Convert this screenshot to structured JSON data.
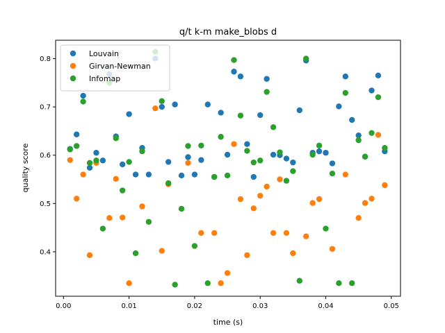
{
  "chart_data": {
    "type": "scatter",
    "title": "q/t k-m make_blobs d",
    "xlabel": "time (s)",
    "ylabel": "quality score",
    "xlim": [
      -0.0012,
      0.0514
    ],
    "ylim": [
      0.308,
      0.838
    ],
    "xticks": [
      0.0,
      0.01,
      0.02,
      0.03,
      0.04,
      0.05
    ],
    "xtick_labels": [
      "0.00",
      "0.01",
      "0.02",
      "0.03",
      "0.04",
      "0.05"
    ],
    "yticks": [
      0.4,
      0.5,
      0.6,
      0.7,
      0.8
    ],
    "ytick_labels": [
      "0.4",
      "0.5",
      "0.6",
      "0.7",
      "0.8"
    ],
    "grid": false,
    "legend_position": "top-left",
    "series": [
      {
        "name": "Louvain",
        "color": "#1f77b4",
        "points": [
          [
            0.001,
            0.613
          ],
          [
            0.002,
            0.643
          ],
          [
            0.003,
            0.723
          ],
          [
            0.004,
            0.574
          ],
          [
            0.005,
            0.605
          ],
          [
            0.006,
            0.589
          ],
          [
            0.007,
            0.768
          ],
          [
            0.008,
            0.639
          ],
          [
            0.009,
            0.581
          ],
          [
            0.01,
            0.685
          ],
          [
            0.011,
            0.56
          ],
          [
            0.012,
            0.615
          ],
          [
            0.013,
            0.56
          ],
          [
            0.014,
            0.8
          ],
          [
            0.015,
            0.7
          ],
          [
            0.016,
            0.586
          ],
          [
            0.017,
            0.705
          ],
          [
            0.018,
            0.558
          ],
          [
            0.019,
            0.596
          ],
          [
            0.02,
            0.56
          ],
          [
            0.021,
            0.59
          ],
          [
            0.022,
            0.705
          ],
          [
            0.023,
            0.555
          ],
          [
            0.024,
            0.688
          ],
          [
            0.025,
            0.601
          ],
          [
            0.026,
            0.773
          ],
          [
            0.027,
            0.763
          ],
          [
            0.028,
            0.623
          ],
          [
            0.029,
            0.555
          ],
          [
            0.03,
            0.683
          ],
          [
            0.031,
            0.758
          ],
          [
            0.032,
            0.601
          ],
          [
            0.033,
            0.6
          ],
          [
            0.034,
            0.593
          ],
          [
            0.035,
            0.585
          ],
          [
            0.036,
            0.693
          ],
          [
            0.037,
            0.796
          ],
          [
            0.038,
            0.605
          ],
          [
            0.039,
            0.608
          ],
          [
            0.04,
            0.605
          ],
          [
            0.041,
            0.583
          ],
          [
            0.042,
            0.701
          ],
          [
            0.043,
            0.763
          ],
          [
            0.044,
            0.673
          ],
          [
            0.045,
            0.641
          ],
          [
            0.046,
            0.597
          ],
          [
            0.047,
            0.734
          ],
          [
            0.048,
            0.765
          ],
          [
            0.049,
            0.608
          ]
        ]
      },
      {
        "name": "Girvan-Newman",
        "color": "#ff7f0e",
        "points": [
          [
            0.001,
            0.59
          ],
          [
            0.002,
            0.51
          ],
          [
            0.003,
            0.56
          ],
          [
            0.004,
            0.393
          ],
          [
            0.005,
            0.584
          ],
          [
            0.007,
            0.47
          ],
          [
            0.008,
            0.551
          ],
          [
            0.009,
            0.471
          ],
          [
            0.01,
            0.335
          ],
          [
            0.012,
            0.494
          ],
          [
            0.014,
            0.697
          ],
          [
            0.015,
            0.402
          ],
          [
            0.016,
            0.54
          ],
          [
            0.019,
            0.584
          ],
          [
            0.021,
            0.439
          ],
          [
            0.023,
            0.439
          ],
          [
            0.024,
            0.335
          ],
          [
            0.025,
            0.356
          ],
          [
            0.026,
            0.623
          ],
          [
            0.027,
            0.509
          ],
          [
            0.028,
            0.393
          ],
          [
            0.029,
            0.49
          ],
          [
            0.03,
            0.516
          ],
          [
            0.031,
            0.535
          ],
          [
            0.032,
            0.439
          ],
          [
            0.033,
            0.55
          ],
          [
            0.034,
            0.439
          ],
          [
            0.035,
            0.397
          ],
          [
            0.037,
            0.432
          ],
          [
            0.038,
            0.501
          ],
          [
            0.039,
            0.509
          ],
          [
            0.041,
            0.406
          ],
          [
            0.043,
            0.56
          ],
          [
            0.045,
            0.47
          ],
          [
            0.046,
            0.501
          ],
          [
            0.047,
            0.51
          ],
          [
            0.048,
            0.642
          ],
          [
            0.049,
            0.538
          ]
        ]
      },
      {
        "name": "Infomap",
        "color": "#2ca02c",
        "points": [
          [
            0.001,
            0.612
          ],
          [
            0.002,
            0.619
          ],
          [
            0.003,
            0.711
          ],
          [
            0.004,
            0.584
          ],
          [
            0.005,
            0.589
          ],
          [
            0.006,
            0.448
          ],
          [
            0.007,
            0.75
          ],
          [
            0.008,
            0.635
          ],
          [
            0.009,
            0.527
          ],
          [
            0.01,
            0.586
          ],
          [
            0.011,
            0.397
          ],
          [
            0.012,
            0.608
          ],
          [
            0.013,
            0.462
          ],
          [
            0.014,
            0.814
          ],
          [
            0.015,
            0.712
          ],
          [
            0.016,
            0.542
          ],
          [
            0.017,
            0.332
          ],
          [
            0.018,
            0.489
          ],
          [
            0.019,
            0.619
          ],
          [
            0.02,
            0.412
          ],
          [
            0.021,
            0.62
          ],
          [
            0.022,
            0.335
          ],
          [
            0.023,
            0.555
          ],
          [
            0.024,
            0.638
          ],
          [
            0.025,
            0.558
          ],
          [
            0.026,
            0.797
          ],
          [
            0.027,
            0.682
          ],
          [
            0.028,
            0.609
          ],
          [
            0.029,
            0.585
          ],
          [
            0.03,
            0.589
          ],
          [
            0.031,
            0.731
          ],
          [
            0.032,
            0.658
          ],
          [
            0.033,
            0.606
          ],
          [
            0.034,
            0.547
          ],
          [
            0.035,
            0.567
          ],
          [
            0.036,
            0.34
          ],
          [
            0.037,
            0.8
          ],
          [
            0.038,
            0.601
          ],
          [
            0.039,
            0.62
          ],
          [
            0.04,
            0.448
          ],
          [
            0.041,
            0.562
          ],
          [
            0.042,
            0.335
          ],
          [
            0.043,
            0.729
          ],
          [
            0.044,
            0.335
          ],
          [
            0.045,
            0.631
          ],
          [
            0.046,
            0.597
          ],
          [
            0.047,
            0.646
          ],
          [
            0.048,
            0.72
          ],
          [
            0.049,
            0.615
          ]
        ]
      }
    ]
  }
}
